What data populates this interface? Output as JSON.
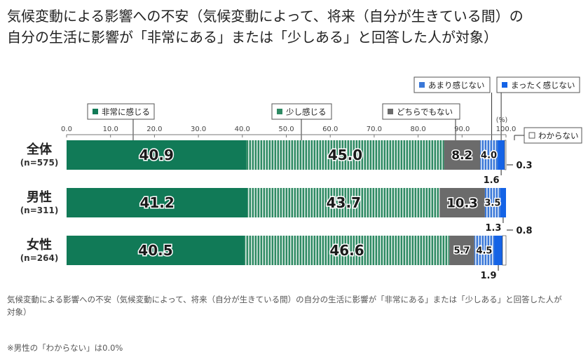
{
  "title_lines": [
    "気候変動による影響への不安（気候変動によって、将来（自分が生きている間）の",
    "自分の生活に影響が「非常にある」または「少しある」と回答した人が対象）"
  ],
  "footnote": "気候変動による影響への不安（気候変動によって、将来（自分が生きている間）の自分の生活に影響が「非常にある」または「少しある」と回答した人が対象）",
  "note": "※男性の「わからない」は0.0%",
  "chart_data": {
    "type": "bar",
    "orientation": "horizontal",
    "stacked": true,
    "xlim": [
      0,
      100
    ],
    "x_ticks": [
      "0.0",
      "10.0",
      "20.0",
      "30.0",
      "40.0",
      "50.0",
      "60.0",
      "70.0",
      "80.0",
      "90.0",
      "100.0"
    ],
    "unit": "(%)",
    "categories": [
      {
        "name": "全体",
        "n": "(n=575)"
      },
      {
        "name": "男性",
        "n": "(n=311)"
      },
      {
        "name": "女性",
        "n": "(n=264)"
      }
    ],
    "series": [
      {
        "name": "非常に感じる",
        "values": [
          40.9,
          41.2,
          40.5
        ],
        "labels": [
          "40.9",
          "41.2",
          "40.5"
        ],
        "color": "#117a57"
      },
      {
        "name": "少し感じる",
        "values": [
          45.0,
          43.7,
          46.6
        ],
        "labels": [
          "45.0",
          "43.7",
          "46.6"
        ],
        "color": "#2e8a63"
      },
      {
        "name": "どちらでもない",
        "values": [
          8.2,
          10.3,
          5.7
        ],
        "labels": [
          "8.2",
          "10.3",
          "5.7"
        ],
        "color": "#6b6b6b"
      },
      {
        "name": "あまり感じない",
        "values": [
          4.0,
          3.5,
          4.5
        ],
        "labels": [
          "4.0",
          "3.5",
          "4.5"
        ],
        "color": "#3a78d8"
      },
      {
        "name": "まったく感じない",
        "values": [
          1.6,
          1.3,
          1.9
        ],
        "labels": [
          "1.6",
          "1.3",
          "1.9"
        ],
        "color": "#1463e6"
      },
      {
        "name": "わからない",
        "values": [
          0.3,
          0.0,
          0.8
        ],
        "labels": [
          "0.3",
          "",
          "0.8"
        ],
        "color": "#ffffff"
      }
    ]
  }
}
